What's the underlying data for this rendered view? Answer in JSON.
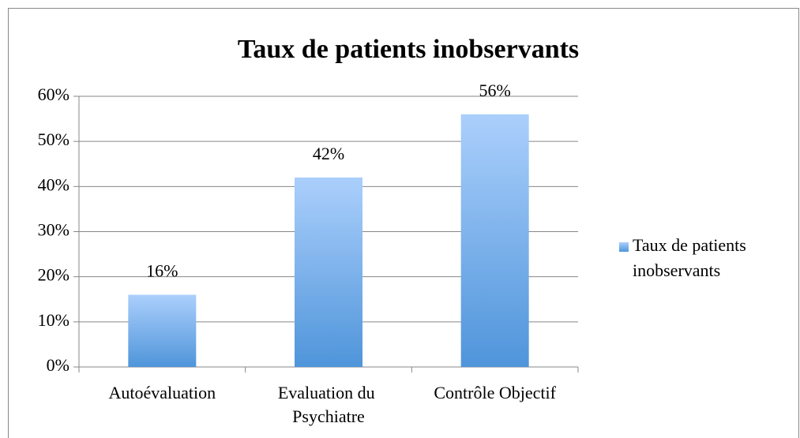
{
  "chart_data": {
    "type": "bar",
    "title": "Taux de patients inobservants",
    "categories": [
      "Autoévaluation",
      "Evaluation du Psychiatre",
      "Contrôle Objectif"
    ],
    "series": [
      {
        "name": "Taux de patients inobservants",
        "color": "#4f95da",
        "values": [
          16,
          42,
          56
        ],
        "value_labels": [
          "16%",
          "42%",
          "56%"
        ]
      }
    ],
    "ylim": [
      0,
      60
    ],
    "yticks": [
      {
        "value": 0,
        "label": "0%"
      },
      {
        "value": 10,
        "label": "10%"
      },
      {
        "value": 20,
        "label": "20%"
      },
      {
        "value": 30,
        "label": "30%"
      },
      {
        "value": 40,
        "label": "40%"
      },
      {
        "value": 50,
        "label": "50%"
      },
      {
        "value": 60,
        "label": "60%"
      }
    ],
    "grid": true,
    "legend": "right"
  }
}
